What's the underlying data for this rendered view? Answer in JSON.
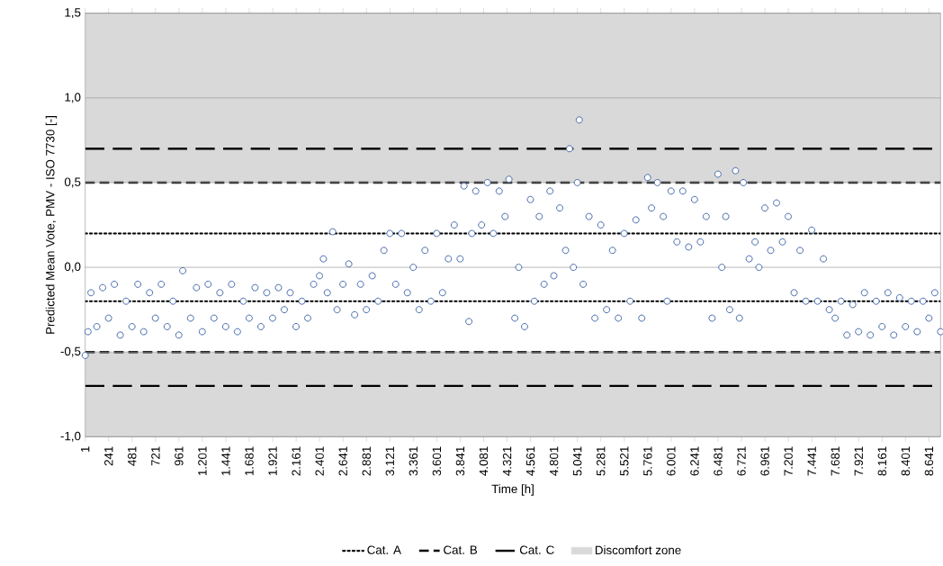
{
  "chart_data": {
    "type": "scatter",
    "xlabel": "Time [h]",
    "ylabel": "Predicted Mean Vote, PMV - ISO 7730 [-]",
    "x": [
      1,
      30,
      60,
      120,
      180,
      240,
      300,
      360,
      420,
      480,
      540,
      600,
      660,
      720,
      780,
      840,
      900,
      960,
      1000,
      1080,
      1140,
      1200,
      1260,
      1320,
      1380,
      1440,
      1500,
      1560,
      1620,
      1680,
      1740,
      1800,
      1860,
      1920,
      1980,
      2040,
      2100,
      2160,
      2220,
      2280,
      2340,
      2400,
      2440,
      2480,
      2535,
      2580,
      2640,
      2700,
      2760,
      2820,
      2880,
      2940,
      3000,
      3060,
      3121,
      3180,
      3240,
      3300,
      3360,
      3420,
      3480,
      3540,
      3600,
      3660,
      3720,
      3780,
      3840,
      3880,
      3930,
      3960,
      4000,
      4060,
      4120,
      4180,
      4240,
      4300,
      4340,
      4400,
      4440,
      4500,
      4560,
      4600,
      4650,
      4700,
      4760,
      4800,
      4860,
      4920,
      4960,
      5000,
      5040,
      5060,
      5100,
      5160,
      5220,
      5280,
      5340,
      5400,
      5460,
      5520,
      5580,
      5640,
      5700,
      5760,
      5800,
      5860,
      5920,
      5960,
      6000,
      6060,
      6120,
      6180,
      6240,
      6300,
      6360,
      6420,
      6480,
      6520,
      6560,
      6600,
      6660,
      6700,
      6740,
      6800,
      6860,
      6900,
      6960,
      7020,
      7080,
      7140,
      7200,
      7260,
      7320,
      7380,
      7440,
      7500,
      7560,
      7620,
      7680,
      7740,
      7800,
      7860,
      7920,
      7980,
      8040,
      8100,
      8160,
      8220,
      8280,
      8340,
      8400,
      8460,
      8520,
      8580,
      8640,
      8700,
      8760
    ],
    "values": [
      -0.52,
      -0.38,
      -0.15,
      -0.35,
      -0.12,
      -0.3,
      -0.1,
      -0.4,
      -0.2,
      -0.35,
      -0.1,
      -0.38,
      -0.15,
      -0.3,
      -0.1,
      -0.35,
      -0.2,
      -0.4,
      -0.02,
      -0.3,
      -0.12,
      -0.38,
      -0.1,
      -0.3,
      -0.15,
      -0.35,
      -0.1,
      -0.38,
      -0.2,
      -0.3,
      -0.12,
      -0.35,
      -0.15,
      -0.3,
      -0.12,
      -0.25,
      -0.15,
      -0.35,
      -0.2,
      -0.3,
      -0.1,
      -0.05,
      0.05,
      -0.15,
      0.21,
      -0.25,
      -0.1,
      0.02,
      -0.28,
      -0.1,
      -0.25,
      -0.05,
      -0.2,
      0.1,
      0.2,
      -0.1,
      0.2,
      -0.15,
      0.0,
      -0.25,
      0.1,
      -0.2,
      0.2,
      -0.15,
      0.05,
      0.25,
      0.05,
      0.48,
      -0.32,
      0.2,
      0.45,
      0.25,
      0.5,
      0.2,
      0.45,
      0.3,
      0.52,
      -0.3,
      0.0,
      -0.35,
      0.4,
      -0.2,
      0.3,
      -0.1,
      0.45,
      -0.05,
      0.35,
      0.1,
      0.7,
      0.0,
      0.5,
      0.87,
      -0.1,
      0.3,
      -0.3,
      0.25,
      -0.25,
      0.1,
      -0.3,
      0.2,
      -0.2,
      0.28,
      -0.3,
      0.53,
      0.35,
      0.5,
      0.3,
      -0.2,
      0.45,
      0.15,
      0.45,
      0.12,
      0.4,
      0.15,
      0.3,
      -0.3,
      0.55,
      0.0,
      0.3,
      -0.25,
      0.57,
      -0.3,
      0.5,
      0.05,
      0.15,
      0.0,
      0.35,
      0.1,
      0.38,
      0.15,
      0.3,
      -0.15,
      0.1,
      -0.2,
      0.22,
      -0.2,
      0.05,
      -0.25,
      -0.3,
      -0.2,
      -0.4,
      -0.22,
      -0.38,
      -0.15,
      -0.4,
      -0.2,
      -0.35,
      -0.15,
      -0.4,
      -0.18,
      -0.35,
      -0.2,
      -0.38,
      -0.2,
      -0.3,
      -0.15,
      -0.38
    ],
    "color": "#3a62a7",
    "marker": "circle",
    "xlim": [
      1,
      8760
    ],
    "xticks": [
      {
        "value": 1,
        "label": "1"
      },
      {
        "value": 241,
        "label": "241"
      },
      {
        "value": 481,
        "label": "481"
      },
      {
        "value": 721,
        "label": "721"
      },
      {
        "value": 961,
        "label": "961"
      },
      {
        "value": 1201,
        "label": "1.201"
      },
      {
        "value": 1441,
        "label": "1.441"
      },
      {
        "value": 1681,
        "label": "1.681"
      },
      {
        "value": 1921,
        "label": "1.921"
      },
      {
        "value": 2161,
        "label": "2.161"
      },
      {
        "value": 2401,
        "label": "2.401"
      },
      {
        "value": 2641,
        "label": "2.641"
      },
      {
        "value": 2881,
        "label": "2.881"
      },
      {
        "value": 3121,
        "label": "3.121"
      },
      {
        "value": 3361,
        "label": "3.361"
      },
      {
        "value": 3601,
        "label": "3.601"
      },
      {
        "value": 3841,
        "label": "3.841"
      },
      {
        "value": 4081,
        "label": "4.081"
      },
      {
        "value": 4321,
        "label": "4.321"
      },
      {
        "value": 4561,
        "label": "4.561"
      },
      {
        "value": 4801,
        "label": "4.801"
      },
      {
        "value": 5041,
        "label": "5.041"
      },
      {
        "value": 5281,
        "label": "5.281"
      },
      {
        "value": 5521,
        "label": "5.521"
      },
      {
        "value": 5761,
        "label": "5.761"
      },
      {
        "value": 6001,
        "label": "6.001"
      },
      {
        "value": 6241,
        "label": "6.241"
      },
      {
        "value": 6481,
        "label": "6.481"
      },
      {
        "value": 6721,
        "label": "6.721"
      },
      {
        "value": 6961,
        "label": "6.961"
      },
      {
        "value": 7201,
        "label": "7.201"
      },
      {
        "value": 7441,
        "label": "7.441"
      },
      {
        "value": 7681,
        "label": "7.681"
      },
      {
        "value": 7921,
        "label": "7.921"
      },
      {
        "value": 8161,
        "label": "8.161"
      },
      {
        "value": 8401,
        "label": "8.401"
      },
      {
        "value": 8641,
        "label": "8.641"
      }
    ],
    "ylim": [
      -1.0,
      1.5
    ],
    "yticks": [
      {
        "value": -1.0,
        "label": "-1,0"
      },
      {
        "value": -0.5,
        "label": "-0,5"
      },
      {
        "value": 0.0,
        "label": "0,0"
      },
      {
        "value": 0.5,
        "label": "0,5"
      },
      {
        "value": 1.0,
        "label": "1,0"
      },
      {
        "value": 1.5,
        "label": "1,5"
      }
    ],
    "grid": "y",
    "legend": "bottom",
    "ref_lines": [
      {
        "axis": "y",
        "value": 0.2,
        "label": "Cat. A",
        "line_style": "dotted",
        "color": "#000000"
      },
      {
        "axis": "y",
        "value": -0.2,
        "line_style": "dotted",
        "color": "#000000"
      },
      {
        "axis": "y",
        "value": 0.5,
        "label": "Cat. B",
        "line_style": "dashed",
        "color": "#000000"
      },
      {
        "axis": "y",
        "value": -0.5,
        "line_style": "dashed",
        "color": "#000000"
      },
      {
        "axis": "y",
        "value": 0.7,
        "label": "Cat. C",
        "line_style": "dashed",
        "color": "#000000"
      },
      {
        "axis": "y",
        "value": -0.7,
        "line_style": "dashed",
        "color": "#000000"
      }
    ],
    "bands": [
      {
        "axis": "y",
        "from": 0.5,
        "to": 1.5,
        "label": "Discomfort zone",
        "color": "#d9d9d9"
      },
      {
        "axis": "y",
        "from": -1.0,
        "to": -0.5,
        "color": "#d9d9d9"
      }
    ]
  }
}
